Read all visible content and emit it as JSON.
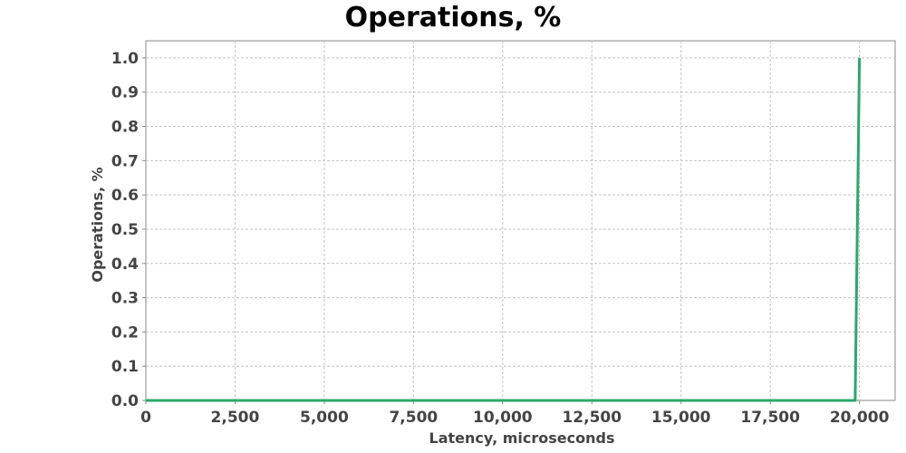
{
  "colors": {
    "series": "#2ca86a",
    "grid": "#c4c4c4",
    "text": "#444444"
  },
  "chart_data": {
    "type": "line",
    "title": "Operations, %",
    "xlabel": "Latency, microseconds",
    "ylabel": "Operations, %",
    "xlim": [
      0,
      21000
    ],
    "ylim": [
      0,
      1.05
    ],
    "x_ticks": [
      0,
      2500,
      5000,
      7500,
      10000,
      12500,
      15000,
      17500,
      20000
    ],
    "x_tick_labels": [
      "0",
      "2,500",
      "5,000",
      "7,500",
      "10,000",
      "12,500",
      "15,000",
      "17,500",
      "20,000"
    ],
    "y_ticks": [
      0,
      0.1,
      0.2,
      0.3,
      0.4,
      0.5,
      0.6,
      0.7,
      0.8,
      0.9,
      1.0
    ],
    "y_tick_labels": [
      "0.0",
      "0.1",
      "0.2",
      "0.3",
      "0.4",
      "0.5",
      "0.6",
      "0.7",
      "0.8",
      "0.9",
      "1.0"
    ],
    "grid": true,
    "legend": "none",
    "series": [
      {
        "color": "#2ca86a",
        "x": [
          0,
          19880,
          20000
        ],
        "y": [
          0,
          0,
          1.0
        ]
      }
    ]
  }
}
